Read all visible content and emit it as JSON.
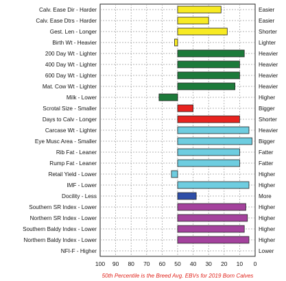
{
  "chart_data": {
    "type": "bar",
    "orientation": "horizontal",
    "x_axis": {
      "reversed": true,
      "xlim": [
        100,
        0
      ],
      "ticks": [
        "100",
        "90",
        "80",
        "70",
        "60",
        "50",
        "40",
        "30",
        "20",
        "10",
        "0"
      ]
    },
    "grid": true,
    "baseline": 50,
    "footnote": "50th Percentile is the Breed Avg. EBVs for 2019 Born Calves",
    "rows": [
      {
        "left": "Calv. Ease Dir - Harder",
        "right": "Easier",
        "value": 22,
        "color": "#f7ea22"
      },
      {
        "left": "Calv. Ease Dtrs - Harder",
        "right": "Easier",
        "value": 30,
        "color": "#f7ea22"
      },
      {
        "left": "Gest. Len - Longer",
        "right": "Shorter",
        "value": 18,
        "color": "#f7ea22"
      },
      {
        "left": "Birth Wt - Heavier",
        "right": "Lighter",
        "value": 52,
        "color": "#f7ea22"
      },
      {
        "left": "200 Day Wt - Lighter",
        "right": "Heavier",
        "value": 7,
        "color": "#1c7a3a"
      },
      {
        "left": "400 Day Wt - Lighter",
        "right": "Heavier",
        "value": 10,
        "color": "#1c7a3a"
      },
      {
        "left": "600 Day Wt - Lighter",
        "right": "Heavier",
        "value": 10,
        "color": "#1c7a3a"
      },
      {
        "left": "Mat. Cow Wt - Lighter",
        "right": "Heavier",
        "value": 13,
        "color": "#1c7a3a"
      },
      {
        "left": "Milk - Lower",
        "right": "Higher",
        "value": 62,
        "color": "#1c7a3a"
      },
      {
        "left": "Scrotal Size - Smaller",
        "right": "Bigger",
        "value": 40,
        "color": "#e8231f"
      },
      {
        "left": "Days to Calv - Longer",
        "right": "Shorter",
        "value": 10,
        "color": "#e8231f"
      },
      {
        "left": "Carcase Wt - Lighter",
        "right": "Heavier",
        "value": 4,
        "color": "#6ecde0"
      },
      {
        "left": "Eye Musc Area - Smaller",
        "right": "Bigger",
        "value": 2,
        "color": "#6ecde0"
      },
      {
        "left": "Rib Fat - Leaner",
        "right": "Fatter",
        "value": 10,
        "color": "#6ecde0"
      },
      {
        "left": "Rump Fat - Leaner",
        "right": "Fatter",
        "value": 10,
        "color": "#6ecde0"
      },
      {
        "left": "Retail Yield - Lower",
        "right": "Higher",
        "value": 54,
        "color": "#6ecde0"
      },
      {
        "left": "IMF - Lower",
        "right": "Higher",
        "value": 4,
        "color": "#6ecde0"
      },
      {
        "left": "Docility - Less",
        "right": "More",
        "value": 38,
        "color": "#2e4ea8"
      },
      {
        "left": "Southern SR Index - Lower",
        "right": "Higher",
        "value": 6,
        "color": "#a4429d"
      },
      {
        "left": "Northern SR Index - Lower",
        "right": "Higher",
        "value": 5,
        "color": "#a4429d"
      },
      {
        "left": "Southern Baldy Index - Lower",
        "right": "Higher",
        "value": 7,
        "color": "#a4429d"
      },
      {
        "left": "Northern Baldy Index - Lower",
        "right": "Higher",
        "value": 4,
        "color": "#a4429d"
      },
      {
        "left": "NFI-F - Higher",
        "right": "Lower",
        "value": null,
        "color": "#a4429d"
      }
    ]
  }
}
